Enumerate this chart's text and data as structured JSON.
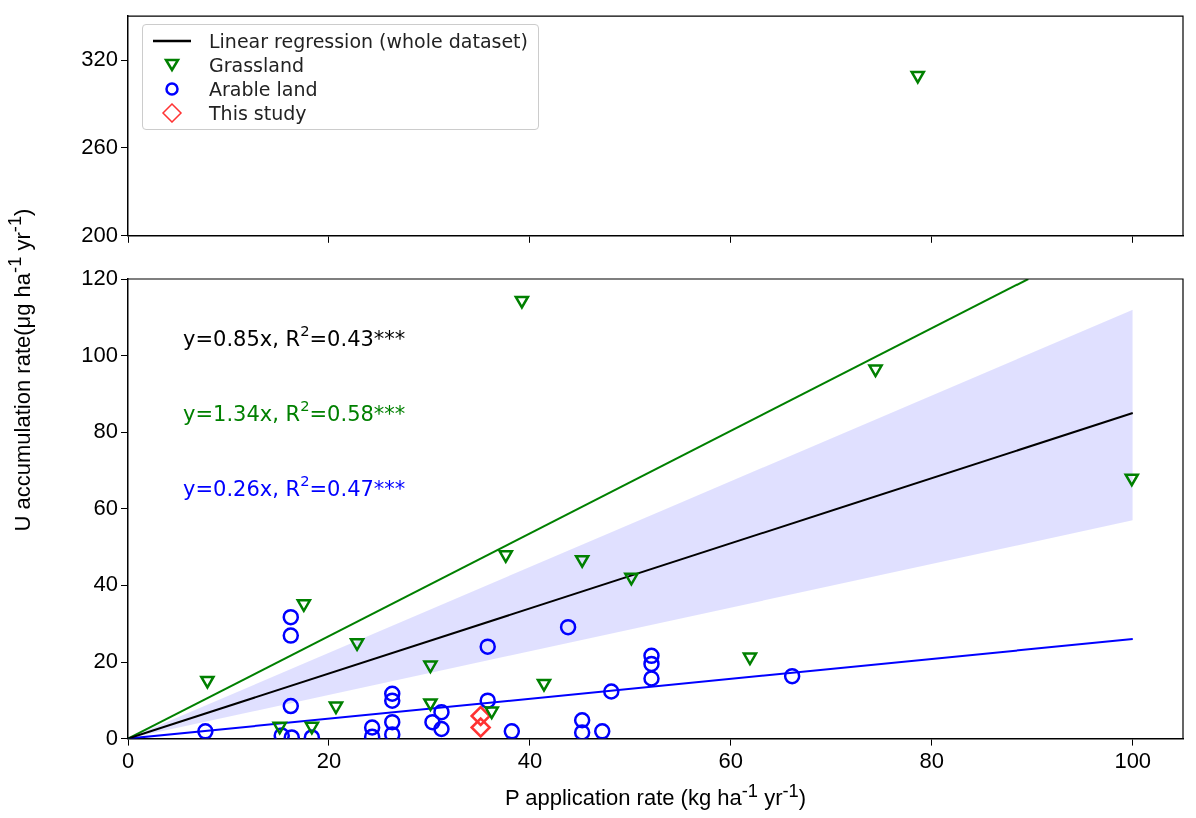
{
  "chart_data": [
    {
      "type": "scatter",
      "xlim": [
        0,
        105
      ],
      "xticks": [
        0,
        20,
        40,
        60,
        80,
        100
      ],
      "ylim": [
        200,
        350
      ],
      "yticks": [
        200,
        260,
        320
      ],
      "tick_labels": "y",
      "legend": "top left",
      "series": [
        {
          "name": "Linear regression (whole dataset)",
          "type": "line",
          "color": "#000000",
          "marker": "none",
          "line_style": "solid"
        },
        {
          "name": "Grassland",
          "color": "#008000",
          "marker": "triangle",
          "x": [
            78.6
          ],
          "values": [
            309.5
          ]
        },
        {
          "name": "Arable land",
          "color": "#0000ff",
          "marker": "circle"
        },
        {
          "name": "This study",
          "color": "#ff3333",
          "marker": "diamond"
        }
      ]
    },
    {
      "type": "scatter",
      "xlim": [
        0,
        105
      ],
      "xticks": [
        0,
        20,
        40,
        60,
        80,
        100
      ],
      "ylim": [
        0,
        120
      ],
      "yticks": [
        0,
        20,
        40,
        60,
        80,
        100,
        120
      ],
      "xlabel": "P application rate (kg ha$^{-1}$ yr$^{-1}$)",
      "ylabel": "U accumulation rate(μg ha$^{-1}$ yr$^{-1}$)",
      "annotations": [
        "y=0.85x, R$^{2}$=0.43***",
        "y=1.34x, R$^{2}$=0.58***",
        "y=0.26x, R$^{2}$=0.47***"
      ],
      "series": [
        {
          "type": "line",
          "color": "#000000",
          "marker": "none",
          "line_style": "solid",
          "x": [
            0,
            100
          ],
          "values": [
            0,
            85
          ],
          "lower": [
            0,
            57
          ],
          "upper": [
            0,
            112
          ]
        },
        {
          "type": "line",
          "color": "#008000",
          "marker": "none",
          "line_style": "solid",
          "x": [
            0,
            89.6
          ],
          "values": [
            0,
            120
          ]
        },
        {
          "type": "line",
          "color": "#0000ff",
          "marker": "none",
          "line_style": "solid",
          "x": [
            0,
            100
          ],
          "values": [
            0,
            26
          ]
        },
        {
          "color": "#008000",
          "marker": "triangle",
          "x": [
            7.9,
            17.5,
            22.8,
            30.1,
            20.7,
            30.1,
            15.1,
            18.3,
            39.2,
            37.6,
            45.2,
            50.1,
            41.4,
            61.9,
            74.4,
            99.9,
            36.2
          ],
          "values": [
            15.2,
            35.2,
            25,
            19.2,
            8.5,
            9.3,
            3.2,
            3.2,
            114.4,
            48,
            46.7,
            42.1,
            14.4,
            21.3,
            96.5,
            68,
            7.2
          ]
        },
        {
          "color": "#0000ff",
          "marker": "circle",
          "x": [
            7.7,
            16.2,
            16.2,
            16.2,
            15.3,
            16.3,
            18.3,
            24.3,
            24.3,
            26.3,
            26.3,
            26.3,
            26.3,
            30.3,
            31.2,
            31.2,
            35.8,
            35.8,
            38.2,
            43.8,
            45.2,
            45.2,
            47.2,
            48.1,
            52.1,
            52.1,
            52.1,
            66.1
          ],
          "values": [
            1.9,
            31.7,
            26.9,
            8.5,
            0.8,
            0.3,
            0.3,
            2.9,
            0.5,
            11.7,
            9.9,
            4.3,
            1.1,
            4.3,
            6.9,
            2.5,
            24,
            9.9,
            1.9,
            29.1,
            4.8,
            1.6,
            1.9,
            12.3,
            21.6,
            19.5,
            15.7,
            16.3
          ]
        },
        {
          "color": "#ff3333",
          "marker": "diamond",
          "x": [
            35.1,
            35.1
          ],
          "values": [
            5.9,
            2.9
          ]
        }
      ]
    }
  ]
}
